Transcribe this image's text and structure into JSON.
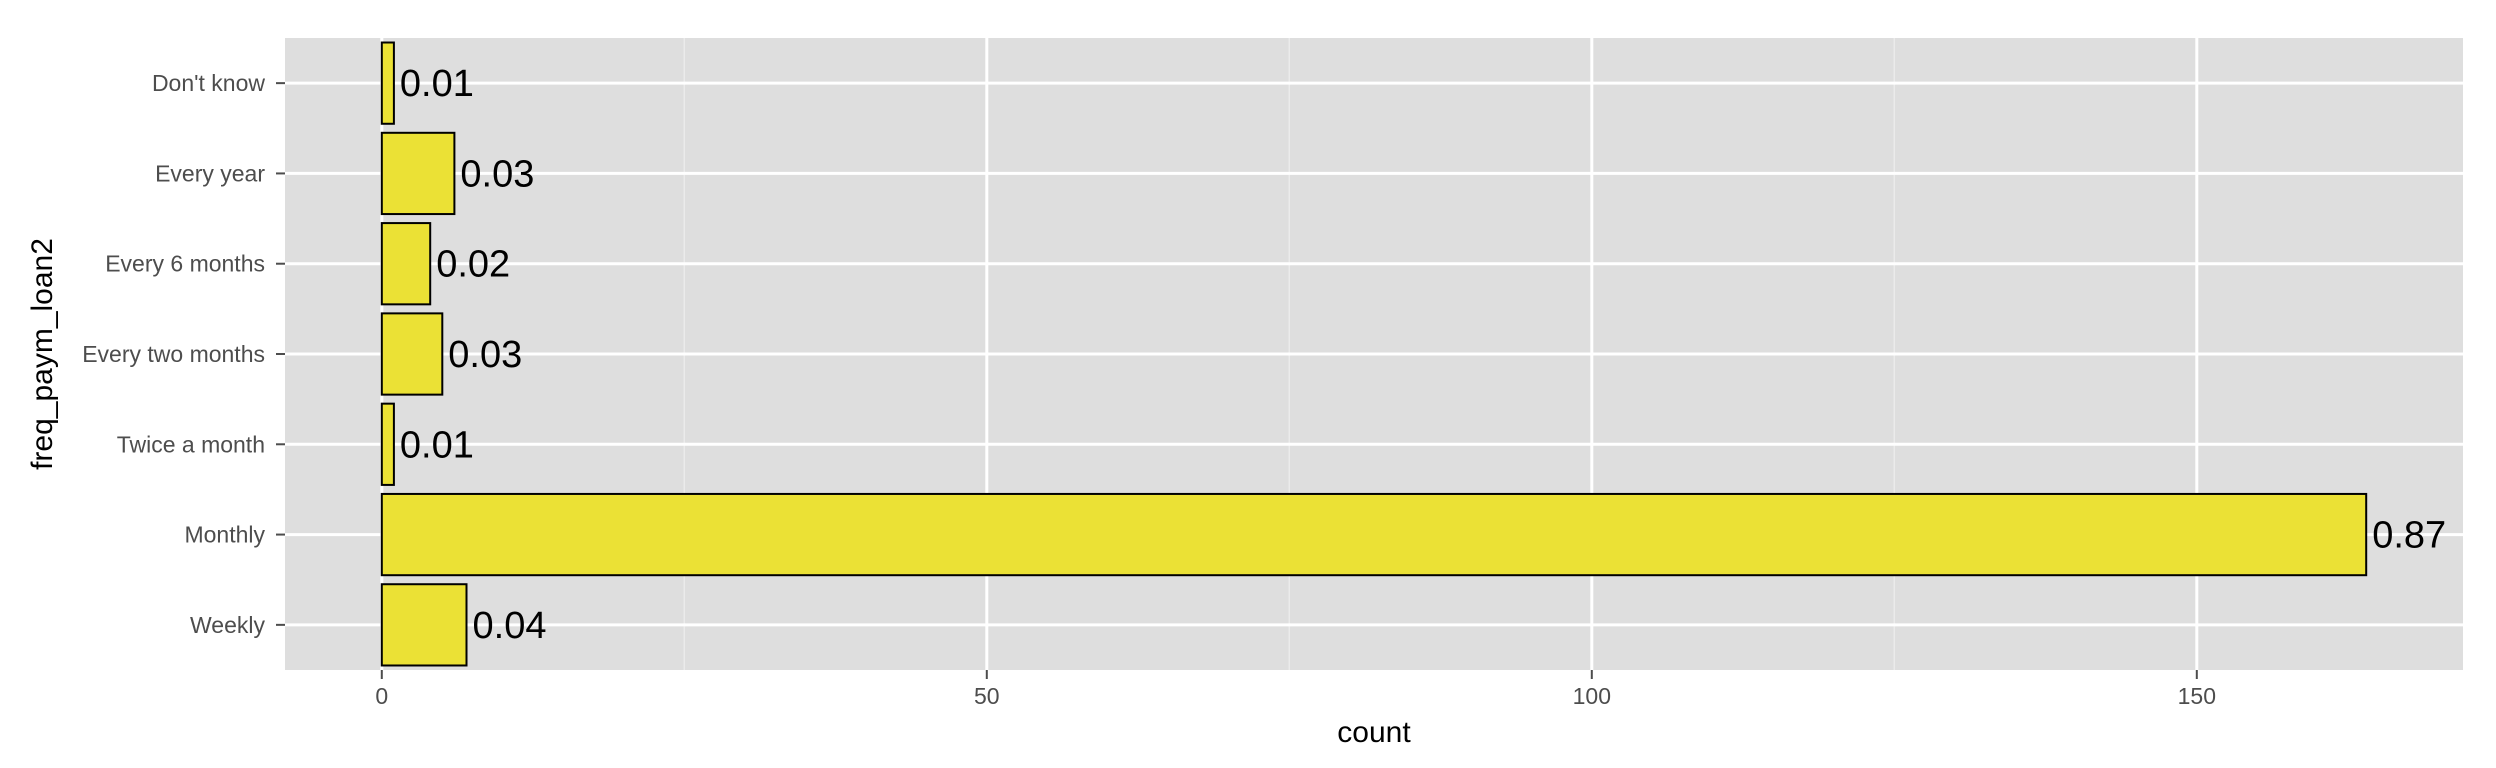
{
  "chart_data": {
    "type": "bar",
    "orientation": "horizontal",
    "categories": [
      "Weekly",
      "Monthly",
      "Twice a month",
      "Every two months",
      "Every 6 months",
      "Every year",
      "Don't know"
    ],
    "values": [
      7,
      164,
      1,
      5,
      4,
      6,
      1
    ],
    "data_labels": [
      "0.04",
      "0.87",
      "0.01",
      "0.03",
      "0.02",
      "0.03",
      "0.01"
    ],
    "xlabel": "count",
    "ylabel": "freq_paym_loan2",
    "xlim": [
      -8,
      172
    ],
    "x_ticks": [
      0,
      50,
      100,
      150
    ],
    "x_tick_labels": [
      "0",
      "50",
      "100",
      "150"
    ],
    "grid": true,
    "legend": "none"
  },
  "colors": {
    "panel_background": "#dedede",
    "grid_major": "#ffffff",
    "grid_minor": "#ebebeb",
    "bar_fill": "#ebe135",
    "bar_outline": "#000000"
  }
}
